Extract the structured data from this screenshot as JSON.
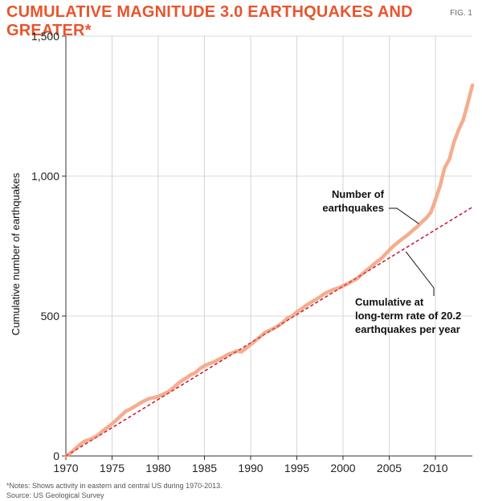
{
  "header": {
    "title": "CUMULATIVE MAGNITUDE 3.0 EARTHQUAKES AND GREATER*",
    "fig_label": "FIG. 1"
  },
  "footer": {
    "note": "*Notes: Shows activity in eastern and central US during 1970-2013.",
    "source": "Source: US Geological Survey"
  },
  "colors": {
    "title": "#e8552d",
    "series_observed": "#f4a988",
    "series_trend": "#c8102e",
    "grid": "#cccccc"
  },
  "chart_data": {
    "type": "line",
    "title": "CUMULATIVE MAGNITUDE 3.0 EARTHQUAKES AND GREATER*",
    "xlabel": "",
    "ylabel": "Cumulative number of earthquakes",
    "xlim": [
      1970,
      2014
    ],
    "ylim": [
      0,
      1500
    ],
    "x_ticks": [
      1970,
      1975,
      1980,
      1985,
      1990,
      1995,
      2000,
      2005,
      2010
    ],
    "x_tick_labels": [
      "1970",
      "1975",
      "1980",
      "1985",
      "1990",
      "1995",
      "2000",
      "2005",
      "2010"
    ],
    "y_ticks": [
      0,
      500,
      1000,
      1500
    ],
    "y_tick_labels": [
      "0",
      "500",
      "1,000",
      "1,500"
    ],
    "grid": true,
    "series": [
      {
        "name": "Number of earthquakes",
        "style": "solid",
        "points": [
          [
            1970.0,
            0
          ],
          [
            1970.5,
            10
          ],
          [
            1971.0,
            25
          ],
          [
            1971.5,
            40
          ],
          [
            1972.0,
            52
          ],
          [
            1972.5,
            58
          ],
          [
            1973.0,
            65
          ],
          [
            1973.5,
            75
          ],
          [
            1974.0,
            90
          ],
          [
            1974.5,
            102
          ],
          [
            1975.0,
            115
          ],
          [
            1975.5,
            130
          ],
          [
            1976.0,
            145
          ],
          [
            1976.5,
            160
          ],
          [
            1977.0,
            168
          ],
          [
            1977.5,
            178
          ],
          [
            1978.0,
            188
          ],
          [
            1978.5,
            197
          ],
          [
            1979.0,
            205
          ],
          [
            1979.5,
            208
          ],
          [
            1980.0,
            213
          ],
          [
            1980.5,
            220
          ],
          [
            1981.0,
            228
          ],
          [
            1981.5,
            240
          ],
          [
            1982.0,
            255
          ],
          [
            1982.5,
            268
          ],
          [
            1983.0,
            278
          ],
          [
            1983.5,
            290
          ],
          [
            1984.0,
            297
          ],
          [
            1984.5,
            312
          ],
          [
            1985.0,
            322
          ],
          [
            1985.5,
            330
          ],
          [
            1986.0,
            335
          ],
          [
            1986.5,
            345
          ],
          [
            1987.0,
            352
          ],
          [
            1987.5,
            362
          ],
          [
            1988.0,
            368
          ],
          [
            1988.5,
            375
          ],
          [
            1989.0,
            372
          ],
          [
            1989.5,
            385
          ],
          [
            1990.0,
            398
          ],
          [
            1990.5,
            412
          ],
          [
            1991.0,
            425
          ],
          [
            1991.5,
            440
          ],
          [
            1992.0,
            448
          ],
          [
            1992.5,
            456
          ],
          [
            1993.0,
            465
          ],
          [
            1993.5,
            478
          ],
          [
            1994.0,
            493
          ],
          [
            1994.5,
            500
          ],
          [
            1995.0,
            515
          ],
          [
            1995.5,
            525
          ],
          [
            1996.0,
            538
          ],
          [
            1996.5,
            548
          ],
          [
            1997.0,
            558
          ],
          [
            1997.5,
            568
          ],
          [
            1998.0,
            580
          ],
          [
            1998.5,
            588
          ],
          [
            1999.0,
            595
          ],
          [
            1999.5,
            600
          ],
          [
            2000.0,
            608
          ],
          [
            2000.5,
            615
          ],
          [
            2001.0,
            625
          ],
          [
            2001.5,
            633
          ],
          [
            2002.0,
            648
          ],
          [
            2002.5,
            662
          ],
          [
            2003.0,
            675
          ],
          [
            2003.5,
            690
          ],
          [
            2004.0,
            702
          ],
          [
            2004.5,
            718
          ],
          [
            2005.0,
            735
          ],
          [
            2005.5,
            752
          ],
          [
            2006.0,
            765
          ],
          [
            2006.5,
            778
          ],
          [
            2007.0,
            790
          ],
          [
            2007.5,
            805
          ],
          [
            2008.0,
            818
          ],
          [
            2008.5,
            835
          ],
          [
            2009.0,
            850
          ],
          [
            2009.5,
            870
          ],
          [
            2010.0,
            915
          ],
          [
            2010.5,
            965
          ],
          [
            2011.0,
            1030
          ],
          [
            2011.5,
            1060
          ],
          [
            2012.0,
            1120
          ],
          [
            2012.5,
            1165
          ],
          [
            2013.0,
            1200
          ],
          [
            2013.5,
            1260
          ],
          [
            2014.0,
            1325
          ]
        ]
      },
      {
        "name": "Cumulative at long-term rate of 20.2 earthquakes per year",
        "style": "dashed",
        "points": [
          [
            1970.0,
            0
          ],
          [
            2014.0,
            889
          ]
        ]
      }
    ],
    "annotations": [
      {
        "lines": [
          "Number of",
          "earthquakes"
        ],
        "points_to": [
          2008.2,
          830
        ]
      },
      {
        "lines": [
          "Cumulative at",
          "long-term rate of 20.2",
          "earthquakes per year"
        ],
        "points_to": [
          2006.8,
          730
        ]
      }
    ]
  }
}
